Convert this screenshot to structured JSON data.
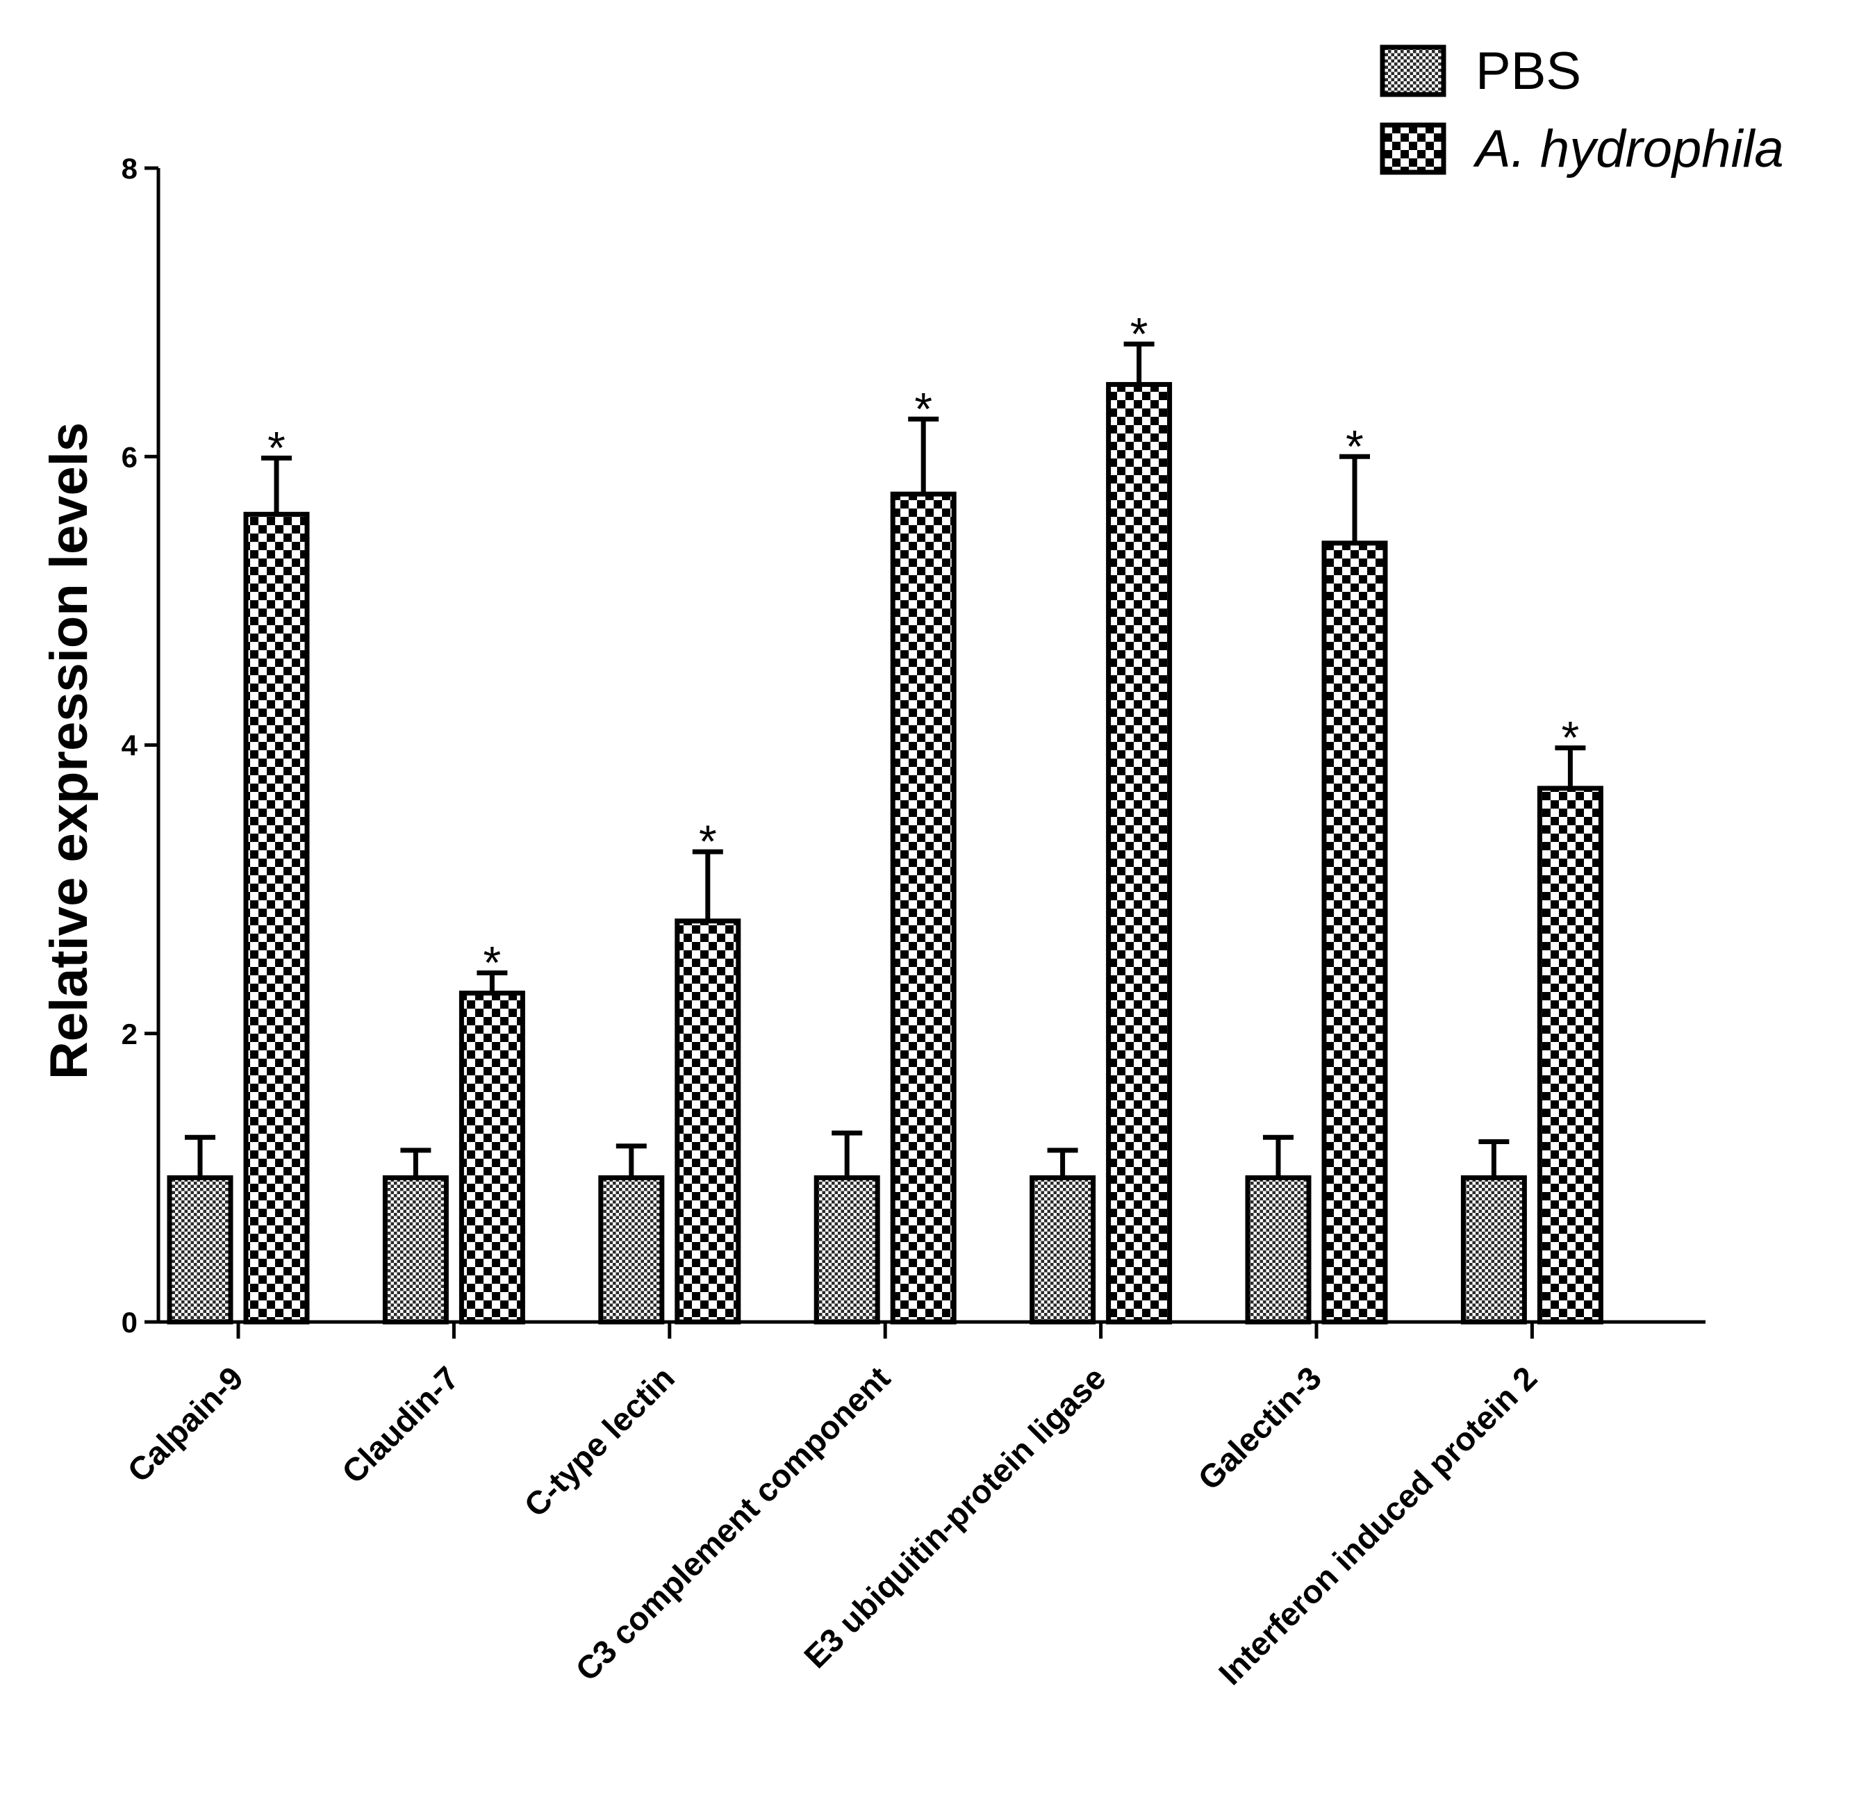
{
  "chart_data": {
    "type": "bar",
    "title": "",
    "xlabel": "",
    "ylabel": "Relative expression levels",
    "ylim": [
      0,
      8
    ],
    "yticks": [
      "0",
      "2",
      "4",
      "6",
      "8"
    ],
    "categories": [
      "Calpain-9",
      "Claudin-7",
      "C-type lectin",
      "C3 complement component",
      "E3 ubiquitin-protein ligase",
      "Galectin-3",
      "Interferon induced protein 2"
    ],
    "series": [
      {
        "name": "PBS",
        "italic": false,
        "pattern": "fine",
        "values": [
          1.0,
          1.0,
          1.0,
          1.0,
          1.0,
          1.0,
          1.0
        ],
        "errors": [
          0.28,
          0.19,
          0.22,
          0.31,
          0.19,
          0.28,
          0.25
        ],
        "significant": [
          false,
          false,
          false,
          false,
          false,
          false,
          false
        ]
      },
      {
        "name": "A. hydrophila",
        "italic": true,
        "pattern": "coarse",
        "values": [
          5.6,
          2.28,
          2.78,
          5.74,
          6.5,
          5.4,
          3.7
        ],
        "errors": [
          0.39,
          0.14,
          0.48,
          0.52,
          0.28,
          0.6,
          0.28
        ],
        "significant": [
          true,
          true,
          true,
          true,
          true,
          true,
          true
        ]
      }
    ],
    "significance_marker": "*",
    "legend": "top-right"
  }
}
